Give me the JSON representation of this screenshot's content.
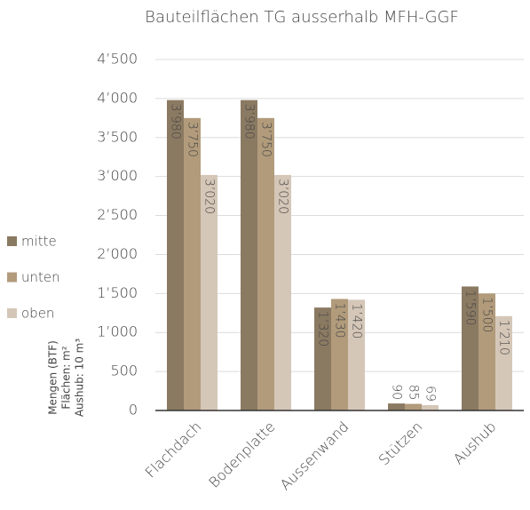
{
  "chart_data": {
    "type": "bar",
    "title": "Bauteilflächen TG ausserhalb MFH-GGF",
    "ylabel": [
      "Mengen (BTF)",
      "Flächen: m²",
      "Aushub: 10 m³"
    ],
    "categories": [
      "Flachdach",
      "Bodenplatte",
      "Aussenwand",
      "Stützen",
      "Aushub"
    ],
    "series": [
      {
        "name": "mitte",
        "color": "#8b7a62",
        "values": [
          3980,
          3980,
          1320,
          90,
          1590
        ],
        "value_labels": [
          "3’980",
          "3’980",
          "1’320",
          "90",
          "1’590"
        ]
      },
      {
        "name": "unten",
        "color": "#b19b7b",
        "values": [
          3750,
          3750,
          1430,
          85,
          1500
        ],
        "value_labels": [
          "3’750",
          "3’750",
          "1’430",
          "85",
          "1’500"
        ]
      },
      {
        "name": "oben",
        "color": "#d5c7b8",
        "values": [
          3020,
          3020,
          1420,
          69,
          1210
        ],
        "value_labels": [
          "3’020",
          "3’020",
          "1’420",
          "69",
          "1’210"
        ]
      }
    ],
    "ylim": [
      0,
      4500
    ],
    "yticks": [
      0,
      500,
      {
        "value": 1000,
        "label": "1’000"
      },
      {
        "value": 1500,
        "label": "1’500"
      },
      {
        "value": 2000,
        "label": "2’000"
      },
      {
        "value": 2500,
        "label": "2’500"
      },
      {
        "value": 3000,
        "label": "3’000"
      },
      {
        "value": 3500,
        "label": "3’500"
      },
      {
        "value": 4000,
        "label": "4’000"
      },
      {
        "value": 4500,
        "label": "4’500"
      }
    ],
    "grid": true,
    "legend": "left"
  }
}
